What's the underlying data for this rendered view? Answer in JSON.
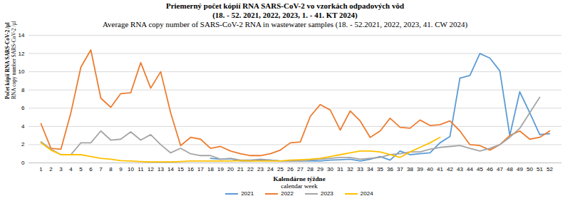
{
  "chart_data": {
    "type": "line",
    "title": [
      "Priemerný počet kópií RNA SARS-CoV-2 vo vzorkách odpadových vôd",
      "(18.  - 52. 2021, 2022, 2023, 1. - 41. KT 2024)"
    ],
    "subtitle": "Average RNA copy number of SARS-CoV-2 RNA in wastewater samples (18. - 52.2021, 2022, 2023, 41. CW 2024)",
    "x_label": [
      "Kalendárne týždne",
      "calendar week"
    ],
    "y_label": [
      "Počet kópií RNA SARS-CoV-2 /µl",
      "RNA copy number SARS-CoV-2 /µl"
    ],
    "categories": [
      "1",
      "2",
      "3",
      "4",
      "5",
      "6",
      "7",
      "8",
      "9",
      "10",
      "11",
      "12",
      "13",
      "14",
      "15",
      "16",
      "17",
      "18",
      "19",
      "20",
      "21",
      "22",
      "23",
      "24",
      "25",
      "26",
      "27",
      "28",
      "29",
      "30",
      "31",
      "32",
      "33",
      "34",
      "35",
      "36",
      "37",
      "38",
      "39",
      "40",
      "41",
      "42",
      "43",
      "44",
      "45",
      "46",
      "47",
      "48",
      "49",
      "50",
      "51",
      "52"
    ],
    "ylim": [
      0,
      14
    ],
    "yticks": [
      0,
      2,
      4,
      6,
      8,
      10,
      12,
      14
    ],
    "grid": true,
    "legend": "bottom",
    "series": [
      {
        "name": "2021",
        "color": "#5b9bd5",
        "values": [
          null,
          null,
          null,
          null,
          null,
          null,
          null,
          null,
          null,
          null,
          null,
          null,
          null,
          null,
          null,
          null,
          null,
          0.5,
          0.4,
          0.45,
          0.2,
          0.2,
          0.3,
          0.3,
          0.2,
          0.2,
          0.2,
          0.2,
          0.2,
          0.3,
          0.35,
          0.4,
          0.2,
          0.4,
          0.7,
          0.3,
          1.3,
          0.9,
          1.0,
          1.1,
          2.2,
          2.9,
          9.3,
          9.6,
          12.0,
          11.5,
          10.1,
          3.0,
          7.8,
          5.5,
          3.1,
          3.2
        ]
      },
      {
        "name": "2022",
        "color": "#ed7d31",
        "values": [
          4.3,
          1.6,
          1.5,
          5.5,
          10.5,
          12.4,
          7.1,
          6.1,
          7.6,
          7.7,
          11.0,
          8.2,
          10.0,
          5.5,
          1.9,
          2.8,
          2.6,
          1.6,
          1.8,
          1.3,
          1.0,
          0.8,
          0.8,
          1.0,
          1.4,
          2.2,
          2.3,
          5.1,
          6.4,
          5.8,
          3.6,
          5.7,
          4.6,
          2.8,
          3.5,
          4.9,
          3.9,
          3.8,
          4.7,
          4.1,
          4.2,
          4.6,
          3.5,
          2.0,
          1.9,
          1.4,
          2.0,
          3.0,
          3.5,
          2.6,
          2.8,
          3.5
        ]
      },
      {
        "name": "2023",
        "color": "#a5a5a5",
        "values": [
          2.3,
          1.5,
          0.9,
          0.9,
          2.2,
          2.2,
          3.5,
          2.5,
          2.6,
          3.4,
          2.5,
          3.1,
          2.0,
          1.1,
          1.6,
          1.0,
          0.8,
          0.8,
          0.4,
          0.5,
          0.3,
          0.3,
          0.4,
          0.3,
          0.2,
          0.2,
          0.2,
          0.3,
          0.4,
          0.5,
          0.6,
          0.6,
          0.4,
          0.5,
          0.6,
          0.9,
          1.0,
          1.2,
          1.2,
          1.5,
          1.7,
          1.8,
          1.9,
          1.6,
          1.3,
          1.6,
          2.0,
          2.8,
          3.8,
          5.5,
          7.2,
          null
        ]
      },
      {
        "name": "2024",
        "color": "#ffc000",
        "values": [
          2.2,
          1.4,
          0.9,
          0.9,
          0.9,
          0.7,
          0.5,
          0.4,
          0.25,
          0.2,
          0.15,
          0.1,
          0.1,
          0.1,
          0.15,
          0.2,
          0.2,
          0.2,
          0.2,
          0.2,
          0.25,
          0.2,
          0.2,
          0.2,
          0.2,
          0.3,
          0.35,
          0.4,
          0.5,
          0.7,
          0.9,
          1.1,
          1.3,
          1.3,
          1.2,
          0.9,
          0.6,
          1.2,
          1.7,
          2.2,
          2.8,
          null,
          null,
          null,
          null,
          null,
          null,
          null,
          null,
          null,
          null,
          null
        ]
      }
    ]
  }
}
